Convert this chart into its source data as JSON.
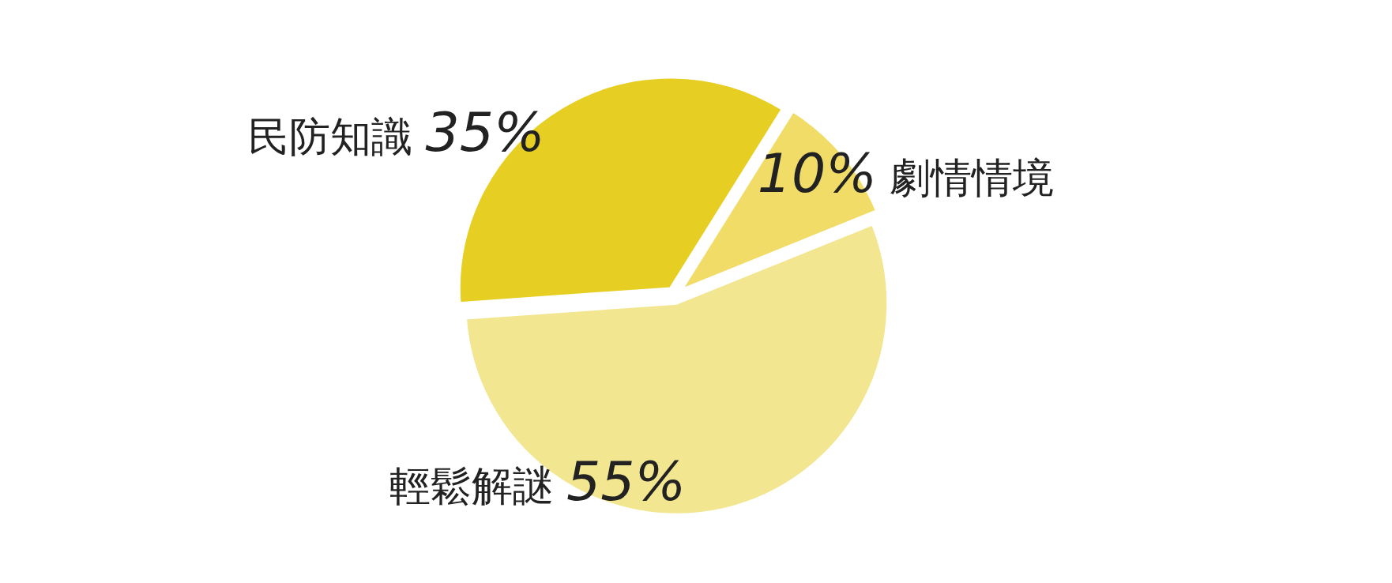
{
  "chart_data": {
    "type": "pie",
    "categories": [
      "民防知識",
      "劇情情境",
      "輕鬆解謎"
    ],
    "values": [
      35,
      10,
      55
    ],
    "value_labels": [
      "35%",
      "10%",
      "55%"
    ],
    "colors": [
      "#e6cf22",
      "#f0dc66",
      "#f3e690"
    ]
  }
}
